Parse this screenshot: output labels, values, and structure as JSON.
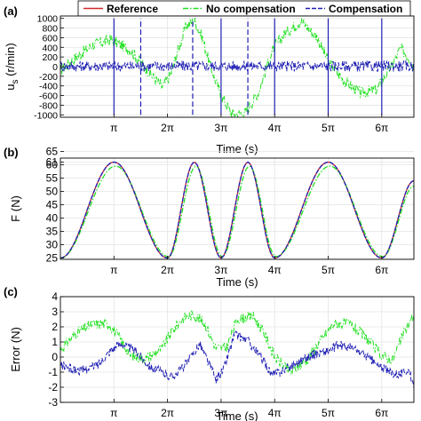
{
  "legend": {
    "entries": [
      {
        "label": "Reference",
        "color": "#d62728",
        "style": "solid"
      },
      {
        "label": "No compensation",
        "color": "#22e022",
        "style": "dashdot"
      },
      {
        "label": "Compensation",
        "color": "#1f1fb4",
        "style": "dashed"
      }
    ]
  },
  "chart_data": [
    {
      "panel": "(a)",
      "type": "line",
      "xlabel": "Time (s)",
      "ylabel": "u_s (r/min)",
      "ylabel_main": "u",
      "ylabel_sub": "s",
      "ylabel_rest": " (r/min)",
      "xlim": [
        0,
        6.6
      ],
      "ylim": [
        -1050,
        1050
      ],
      "grid": true,
      "xticks": [
        1,
        2,
        3,
        4,
        5,
        6
      ],
      "xtick_labels": [
        "π",
        "2π",
        "3π",
        "4π",
        "5π",
        "6π"
      ],
      "yticks": [
        -1000,
        -800,
        -600,
        -400,
        -200,
        0,
        200,
        400,
        600,
        800,
        1000
      ],
      "ytick_labels": [
        "-1000",
        "-800",
        "-600",
        "-400",
        "-200",
        "0",
        "200",
        "400",
        "600",
        "800",
        "1000"
      ],
      "series": [
        {
          "name": "No compensation",
          "x": [
            0,
            0.3,
            0.6,
            0.95,
            1.3,
            1.6,
            1.9,
            2.05,
            2.2,
            2.35,
            2.5,
            2.65,
            2.8,
            3.0,
            3.2,
            3.45,
            3.7,
            3.9,
            4.0,
            4.2,
            4.5,
            4.8,
            5.0,
            5.3,
            5.6,
            5.9,
            6.2,
            6.35,
            6.5,
            6.6
          ],
          "y": [
            -80,
            200,
            450,
            560,
            350,
            -50,
            -420,
            -180,
            350,
            850,
            960,
            600,
            0,
            -600,
            -980,
            -960,
            -520,
            150,
            420,
            700,
            950,
            600,
            100,
            -300,
            -550,
            -480,
            40,
            380,
            200,
            0
          ]
        },
        {
          "name": "Compensation",
          "x": [
            0,
            6.6
          ],
          "y": [
            10,
            10
          ]
        }
      ],
      "spikes_x": [
        1,
        1.5,
        2.47,
        3.0,
        3.5,
        4.0,
        5.0,
        6.0
      ],
      "spike_y": [
        -1000,
        1000
      ]
    },
    {
      "panel": "(b)",
      "type": "line",
      "xlabel": "Time (s)",
      "ylabel": "F (N)",
      "xlim": [
        0,
        6.6
      ],
      "ylim": [
        24.5,
        62.5
      ],
      "grid": true,
      "xticks": [
        1,
        2,
        3,
        4,
        5,
        6
      ],
      "xtick_labels": [
        "π",
        "2π",
        "3π",
        "4π",
        "5π",
        "6π"
      ],
      "yticks": [
        25,
        30,
        35,
        40,
        45,
        50,
        55,
        60,
        61,
        65
      ],
      "ytick_labels": [
        "25",
        "30",
        "35",
        "40",
        "45",
        "50",
        "55",
        "60",
        "61",
        "65"
      ],
      "series": [
        {
          "name": "Reference",
          "x": [
            0,
            1,
            2,
            2.5,
            3,
            3.5,
            4,
            5,
            6,
            6.6
          ],
          "y": [
            25,
            61,
            25,
            61,
            25,
            61,
            25,
            61,
            25,
            54
          ]
        },
        {
          "name": "No compensation",
          "x": [
            0,
            1.03,
            2.02,
            2.53,
            3.02,
            3.53,
            4.02,
            5.03,
            6.02,
            6.6
          ],
          "y": [
            25,
            59.5,
            25.5,
            59.5,
            25.5,
            59.5,
            25.5,
            59.5,
            25.5,
            52
          ]
        },
        {
          "name": "Compensation",
          "x": [
            0,
            1,
            2,
            2.5,
            3,
            3.5,
            4,
            5,
            6,
            6.6
          ],
          "y": [
            25,
            61,
            25,
            61,
            25,
            61,
            25,
            61,
            25,
            54
          ]
        }
      ]
    },
    {
      "panel": "(c)",
      "type": "line",
      "xlabel": "Time (s)",
      "ylabel": "Error (N)",
      "xlim": [
        0,
        6.6
      ],
      "ylim": [
        -3,
        4
      ],
      "grid": true,
      "xticks": [
        1,
        2,
        3,
        4,
        5,
        6
      ],
      "xtick_labels": [
        "π",
        "2π",
        "3π",
        "4π",
        "5π",
        "6π"
      ],
      "yticks": [
        -3,
        -2,
        -1,
        0,
        1,
        2,
        3,
        4
      ],
      "ytick_labels": [
        "-3",
        "-2",
        "-1",
        "0",
        "1",
        "2",
        "3",
        "4"
      ],
      "series": [
        {
          "name": "No compensation",
          "x": [
            0,
            0.3,
            0.6,
            0.9,
            1.1,
            1.3,
            1.6,
            1.9,
            2.1,
            2.3,
            2.5,
            2.7,
            2.9,
            3.1,
            3.3,
            3.6,
            3.8,
            4.0,
            4.3,
            4.6,
            4.9,
            5.1,
            5.4,
            5.7,
            6.0,
            6.2,
            6.4,
            6.6
          ],
          "y": [
            0.5,
            1.6,
            2.2,
            2.2,
            1.3,
            0.1,
            -0.1,
            0.6,
            1.8,
            2.6,
            2.8,
            2.2,
            0.6,
            0.6,
            2.5,
            2.7,
            1.6,
            0.0,
            -1.0,
            -0.2,
            1.3,
            2.2,
            2.2,
            1.3,
            0.1,
            -0.2,
            1.5,
            2.8
          ]
        },
        {
          "name": "Compensation",
          "x": [
            0,
            0.2,
            0.4,
            0.7,
            0.95,
            1.15,
            1.4,
            1.7,
            1.9,
            2.05,
            2.2,
            2.4,
            2.6,
            2.8,
            2.9,
            3.05,
            3.25,
            3.5,
            3.8,
            3.95,
            4.2,
            4.5,
            4.75,
            5.0,
            5.2,
            5.45,
            5.7,
            5.95,
            6.15,
            6.35,
            6.5,
            6.6
          ],
          "y": [
            -0.5,
            -0.8,
            -0.9,
            -0.5,
            0.5,
            0.9,
            0.4,
            -0.7,
            -1.0,
            -1.3,
            -1.0,
            -0.2,
            0.9,
            -0.6,
            -1.5,
            -0.8,
            1.5,
            1.1,
            -0.3,
            -1.2,
            -0.8,
            -0.2,
            0.2,
            0.4,
            0.8,
            0.6,
            0.1,
            -0.6,
            -1.0,
            -1.1,
            -0.8,
            -2.2
          ]
        }
      ]
    }
  ]
}
